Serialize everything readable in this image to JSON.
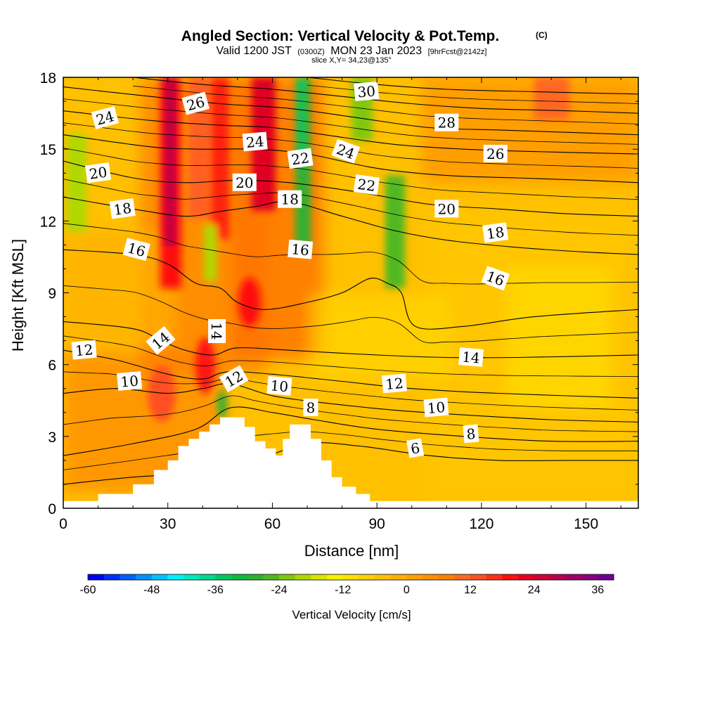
{
  "title": {
    "main": "Angled Section: Vertical Velocity & Pot.Temp.",
    "mark": "(C)",
    "valid_prefix": "Valid 1200 JST",
    "valid_utc": "(0300Z)",
    "valid_date": "MON 23 Jan 2023",
    "fcst": "[9hrFcst@2142z]",
    "slice": "slice X,Y= 34,23@135°"
  },
  "chart_data": {
    "type": "heatmap",
    "xlabel": "Distance [nm]",
    "ylabel": "Height [Kft MSL]",
    "xlim": [
      0,
      165
    ],
    "ylim": [
      0,
      18
    ],
    "x_ticks": [
      0,
      30,
      60,
      90,
      120,
      150
    ],
    "y_ticks": [
      0,
      3,
      6,
      9,
      12,
      15,
      18
    ],
    "colorbar": {
      "title": "Vertical Velocity [cm/s]",
      "tick_labels": [
        -60,
        -48,
        -36,
        -24,
        -12,
        0,
        12,
        24,
        36
      ],
      "range": [
        -60,
        39
      ],
      "step": 3,
      "colors": [
        "#0000f0",
        "#0030f8",
        "#0060ff",
        "#0090ff",
        "#00c0ff",
        "#00f0ff",
        "#00e8c0",
        "#00d890",
        "#00c860",
        "#10b840",
        "#30b030",
        "#50b820",
        "#80c810",
        "#b0d800",
        "#d8e400",
        "#f8f000",
        "#ffe000",
        "#ffd000",
        "#ffc000",
        "#ffb000",
        "#ffa000",
        "#ff9000",
        "#ff8000",
        "#ff6820",
        "#ff5020",
        "#ff3018",
        "#ff1010",
        "#e80020",
        "#d00038",
        "#b80050",
        "#a00068",
        "#880080",
        "#700090"
      ]
    },
    "terrain_profile": [
      [
        0,
        0.3
      ],
      [
        10,
        0.3
      ],
      [
        10,
        0.6
      ],
      [
        20,
        0.6
      ],
      [
        20,
        1.0
      ],
      [
        26,
        1.0
      ],
      [
        26,
        1.6
      ],
      [
        30,
        1.6
      ],
      [
        30,
        2.0
      ],
      [
        33,
        2.0
      ],
      [
        33,
        2.6
      ],
      [
        36,
        2.6
      ],
      [
        36,
        2.9
      ],
      [
        39,
        2.9
      ],
      [
        39,
        3.2
      ],
      [
        42,
        3.2
      ],
      [
        42,
        3.5
      ],
      [
        45,
        3.5
      ],
      [
        45,
        3.8
      ],
      [
        52,
        3.8
      ],
      [
        52,
        3.4
      ],
      [
        55,
        3.4
      ],
      [
        55,
        2.8
      ],
      [
        58,
        2.8
      ],
      [
        58,
        2.5
      ],
      [
        61,
        2.5
      ],
      [
        61,
        2.2
      ],
      [
        63,
        2.2
      ],
      [
        63,
        2.9
      ],
      [
        65,
        2.9
      ],
      [
        65,
        3.5
      ],
      [
        71,
        3.5
      ],
      [
        71,
        2.9
      ],
      [
        74,
        2.9
      ],
      [
        74,
        2.0
      ],
      [
        77,
        2.0
      ],
      [
        77,
        1.3
      ],
      [
        80,
        1.3
      ],
      [
        80,
        0.9
      ],
      [
        84,
        0.9
      ],
      [
        84,
        0.6
      ],
      [
        88,
        0.6
      ],
      [
        88,
        0.3
      ],
      [
        165,
        0.3
      ]
    ],
    "theta_contours": [
      {
        "value": 6,
        "points": [
          [
            0,
            1.0
          ],
          [
            20,
            1.3
          ],
          [
            40,
            1.5
          ],
          [
            55,
            2.0
          ],
          [
            70,
            2.7
          ],
          [
            85,
            2.6
          ],
          [
            105,
            2.2
          ],
          [
            125,
            2.0
          ],
          [
            145,
            2.0
          ],
          [
            165,
            2.0
          ]
        ]
      },
      {
        "value": 8,
        "points": [
          [
            0,
            2.2
          ],
          [
            20,
            2.7
          ],
          [
            38,
            3.3
          ],
          [
            48,
            4.2
          ],
          [
            60,
            4.0
          ],
          [
            72,
            3.7
          ],
          [
            90,
            3.3
          ],
          [
            115,
            3.0
          ],
          [
            140,
            2.8
          ],
          [
            165,
            2.8
          ]
        ]
      },
      {
        "value": 10,
        "points": [
          [
            0,
            4.8
          ],
          [
            15,
            5.0
          ],
          [
            30,
            4.8
          ],
          [
            40,
            5.0
          ],
          [
            48,
            5.2
          ],
          [
            60,
            4.7
          ],
          [
            75,
            4.4
          ],
          [
            95,
            4.1
          ],
          [
            115,
            3.9
          ],
          [
            140,
            3.7
          ],
          [
            165,
            3.6
          ]
        ]
      },
      {
        "value": 12,
        "points": [
          [
            0,
            6.6
          ],
          [
            15,
            6.2
          ],
          [
            30,
            5.6
          ],
          [
            40,
            5.4
          ],
          [
            47,
            5.7
          ],
          [
            60,
            5.6
          ],
          [
            80,
            5.3
          ],
          [
            100,
            5.0
          ],
          [
            125,
            4.8
          ],
          [
            165,
            4.6
          ]
        ]
      },
      {
        "value": 14,
        "points": [
          [
            0,
            7.8
          ],
          [
            20,
            7.5
          ],
          [
            28,
            7.0
          ],
          [
            35,
            6.6
          ],
          [
            43,
            6.4
          ],
          [
            50,
            6.7
          ],
          [
            65,
            6.6
          ],
          [
            90,
            6.4
          ],
          [
            110,
            6.3
          ],
          [
            130,
            6.3
          ],
          [
            165,
            6.4
          ]
        ]
      },
      {
        "value": 16,
        "points": [
          [
            0,
            10.8
          ],
          [
            20,
            10.6
          ],
          [
            30,
            10.2
          ],
          [
            38,
            9.4
          ],
          [
            45,
            9.2
          ],
          [
            50,
            8.6
          ],
          [
            58,
            8.3
          ],
          [
            70,
            8.6
          ],
          [
            80,
            9.0
          ],
          [
            88,
            9.6
          ],
          [
            93,
            9.4
          ],
          [
            97,
            9.0
          ],
          [
            101,
            7.6
          ],
          [
            115,
            7.6
          ],
          [
            135,
            8.0
          ],
          [
            165,
            8.3
          ]
        ]
      },
      {
        "value": 18,
        "points": [
          [
            0,
            13.0
          ],
          [
            20,
            12.5
          ],
          [
            35,
            12.2
          ],
          [
            45,
            12.4
          ],
          [
            55,
            12.6
          ],
          [
            65,
            12.8
          ],
          [
            80,
            12.2
          ],
          [
            95,
            11.6
          ],
          [
            110,
            11.2
          ],
          [
            130,
            10.9
          ],
          [
            150,
            10.7
          ],
          [
            165,
            10.6
          ]
        ]
      },
      {
        "value": 20,
        "points": [
          [
            0,
            14.5
          ],
          [
            20,
            13.8
          ],
          [
            35,
            13.6
          ],
          [
            50,
            13.7
          ],
          [
            65,
            13.6
          ],
          [
            85,
            13.2
          ],
          [
            105,
            12.7
          ],
          [
            125,
            12.5
          ],
          [
            145,
            12.3
          ],
          [
            165,
            12.2
          ]
        ]
      },
      {
        "value": 22,
        "points": [
          [
            0,
            15.6
          ],
          [
            25,
            15.1
          ],
          [
            40,
            15.0
          ],
          [
            55,
            15.0
          ],
          [
            70,
            14.8
          ],
          [
            90,
            14.2
          ],
          [
            110,
            13.9
          ],
          [
            130,
            13.8
          ],
          [
            150,
            13.7
          ],
          [
            165,
            13.6
          ]
        ]
      },
      {
        "value": 24,
        "points": [
          [
            0,
            16.6
          ],
          [
            25,
            16.2
          ],
          [
            45,
            16.0
          ],
          [
            60,
            15.9
          ],
          [
            75,
            15.6
          ],
          [
            95,
            15.2
          ],
          [
            115,
            15.0
          ],
          [
            135,
            14.9
          ],
          [
            165,
            14.8
          ]
        ]
      },
      {
        "value": 26,
        "points": [
          [
            0,
            17.6
          ],
          [
            25,
            17.2
          ],
          [
            45,
            16.9
          ],
          [
            65,
            16.7
          ],
          [
            85,
            16.3
          ],
          [
            105,
            15.9
          ],
          [
            125,
            15.8
          ],
          [
            145,
            15.7
          ],
          [
            165,
            15.6
          ]
        ]
      },
      {
        "value": 28,
        "points": [
          [
            20,
            18.0
          ],
          [
            40,
            17.7
          ],
          [
            60,
            17.5
          ],
          [
            80,
            17.2
          ],
          [
            100,
            16.9
          ],
          [
            120,
            16.7
          ],
          [
            145,
            16.6
          ],
          [
            165,
            16.5
          ]
        ]
      },
      {
        "value": 30,
        "points": [
          [
            70,
            18.0
          ],
          [
            90,
            17.7
          ],
          [
            110,
            17.5
          ],
          [
            135,
            17.4
          ],
          [
            165,
            17.3
          ]
        ]
      }
    ],
    "contour_labels": [
      {
        "text": "24",
        "x": 12,
        "y": 16.3,
        "rot": -15
      },
      {
        "text": "26",
        "x": 38,
        "y": 16.9,
        "rot": -15
      },
      {
        "text": "30",
        "x": 87,
        "y": 17.4,
        "rot": -5
      },
      {
        "text": "28",
        "x": 110,
        "y": 16.1,
        "rot": 0
      },
      {
        "text": "24",
        "x": 55,
        "y": 15.3,
        "rot": -5
      },
      {
        "text": "22",
        "x": 68,
        "y": 14.6,
        "rot": -8
      },
      {
        "text": "24",
        "x": 81,
        "y": 14.9,
        "rot": 20
      },
      {
        "text": "26",
        "x": 124,
        "y": 14.8,
        "rot": 0
      },
      {
        "text": "20",
        "x": 10,
        "y": 14.0,
        "rot": -8
      },
      {
        "text": "20",
        "x": 52,
        "y": 13.6,
        "rot": 0
      },
      {
        "text": "22",
        "x": 87,
        "y": 13.5,
        "rot": 8
      },
      {
        "text": "18",
        "x": 17,
        "y": 12.5,
        "rot": -8
      },
      {
        "text": "18",
        "x": 65,
        "y": 12.9,
        "rot": 0
      },
      {
        "text": "20",
        "x": 110,
        "y": 12.5,
        "rot": 0
      },
      {
        "text": "16",
        "x": 21,
        "y": 10.8,
        "rot": 15
      },
      {
        "text": "16",
        "x": 68,
        "y": 10.8,
        "rot": 5
      },
      {
        "text": "18",
        "x": 124,
        "y": 11.5,
        "rot": -8
      },
      {
        "text": "16",
        "x": 124,
        "y": 9.6,
        "rot": 20
      },
      {
        "text": "14",
        "x": 28,
        "y": 7.0,
        "rot": -40
      },
      {
        "text": "14",
        "x": 44,
        "y": 7.4,
        "rot": 90
      },
      {
        "text": "12",
        "x": 6,
        "y": 6.6,
        "rot": -5
      },
      {
        "text": "14",
        "x": 117,
        "y": 6.3,
        "rot": 5
      },
      {
        "text": "12",
        "x": 49,
        "y": 5.4,
        "rot": -30
      },
      {
        "text": "10",
        "x": 19,
        "y": 5.3,
        "rot": -5
      },
      {
        "text": "10",
        "x": 62,
        "y": 5.1,
        "rot": 5
      },
      {
        "text": "12",
        "x": 95,
        "y": 5.2,
        "rot": -5
      },
      {
        "text": "8",
        "x": 71,
        "y": 4.2,
        "rot": 0
      },
      {
        "text": "10",
        "x": 107,
        "y": 4.2,
        "rot": -5
      },
      {
        "text": "8",
        "x": 117,
        "y": 3.1,
        "rot": -5
      },
      {
        "text": "6",
        "x": 101,
        "y": 2.5,
        "rot": -10
      }
    ]
  }
}
